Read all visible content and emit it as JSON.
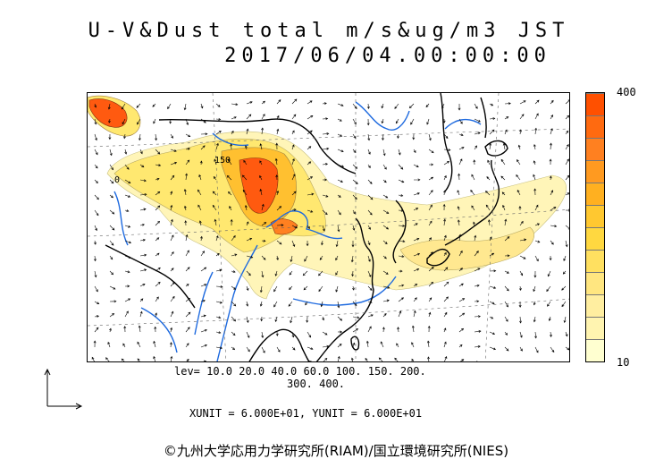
{
  "title": {
    "line1": "U-V&Dust total m/s&ug/m3 JST",
    "line2": "2017/06/04.00:00:00"
  },
  "colorbar": {
    "max_label": "400",
    "min_label": "10",
    "colors": [
      "#ffffd0",
      "#fff4b0",
      "#ffeea0",
      "#ffe680",
      "#ffe060",
      "#ffd840",
      "#ffc830",
      "#ffb020",
      "#ff9a20",
      "#ff8020",
      "#ff6a10",
      "#ff5000"
    ]
  },
  "map": {
    "contour_label": "150",
    "zero_label": "0"
  },
  "levels": {
    "line1": "lev= 10.0 20.0 40.0 60.0 100. 150. 200.",
    "line2": "300. 400."
  },
  "units": {
    "text": "XUNIT = 6.000E+01, YUNIT = 6.000E+01"
  },
  "copyright": {
    "text": "©九州大学応用力学研究所(RIAM)/国立環境研究所(NIES)"
  }
}
